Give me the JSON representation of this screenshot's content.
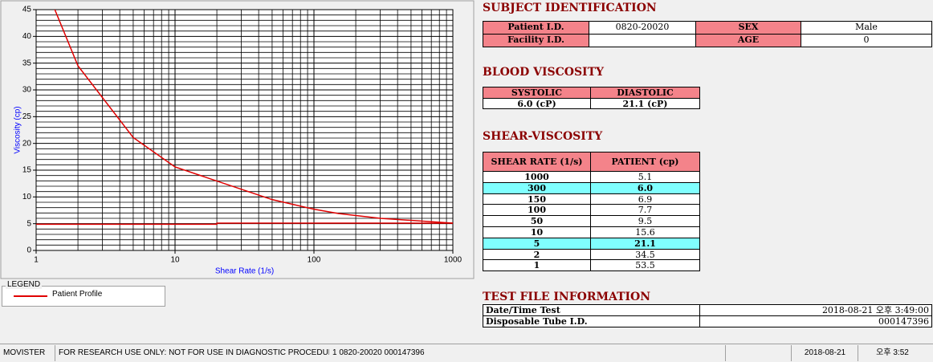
{
  "chart_data": {
    "type": "line",
    "x_label": "Shear Rate (1/s)",
    "y_label": "Viscosity (cp)",
    "log_x": true,
    "xlim": [
      1,
      1000
    ],
    "xticks": [
      1,
      10,
      100,
      1000
    ],
    "xminor": [
      2,
      3,
      4,
      5,
      6,
      7,
      8,
      9,
      20,
      30,
      40,
      50,
      60,
      70,
      80,
      90,
      200,
      300,
      400,
      500,
      600,
      700,
      800,
      900
    ],
    "ylim": [
      0,
      45
    ],
    "yticks": [
      0,
      5,
      10,
      15,
      20,
      25,
      30,
      35,
      40,
      45
    ],
    "yminor": [
      1,
      2,
      3,
      4,
      6,
      7,
      8,
      9,
      11,
      12,
      13,
      14,
      16,
      17,
      18,
      19,
      21,
      22,
      23,
      24,
      26,
      27,
      28,
      29,
      31,
      32,
      33,
      34,
      36,
      37,
      38,
      39,
      41,
      42,
      43,
      44
    ],
    "grid": true,
    "series": [
      {
        "name": "Patient Profile",
        "color": "#e00000",
        "x": [
          1,
          2,
          5,
          10,
          50,
          100,
          150,
          300,
          1000
        ],
        "values": [
          53.5,
          34.5,
          21.1,
          15.6,
          9.5,
          7.7,
          6.9,
          6.0,
          5.1
        ]
      },
      {
        "color": "#e00000",
        "x": [
          1,
          20,
          20,
          1000
        ],
        "values": [
          4.9,
          4.9,
          5.1,
          5.1
        ]
      }
    ],
    "legend_title": "LEGEND"
  },
  "subject": {
    "title": "SUBJECT IDENTIFICATION",
    "rows": [
      [
        "Patient I.D.",
        "0820-20020",
        "SEX",
        "Male"
      ],
      [
        "Facility I.D.",
        null,
        "AGE",
        "0"
      ]
    ]
  },
  "blood": {
    "title": "BLOOD VISCOSITY",
    "headers": [
      "SYSTOLIC",
      "DIASTOLIC"
    ],
    "values": [
      "6.0 (cP)",
      "21.1 (cP)"
    ]
  },
  "shear": {
    "title": "SHEAR-VISCOSITY",
    "headers": [
      "SHEAR RATE (1/s)",
      "PATIENT (cp)"
    ],
    "rows": [
      [
        "1000",
        "5.1"
      ],
      [
        "300",
        "6.0"
      ],
      [
        "150",
        "6.9"
      ],
      [
        "100",
        "7.7"
      ],
      [
        "50",
        "9.5"
      ],
      [
        "10",
        "15.6"
      ],
      [
        "5",
        "21.1"
      ],
      [
        "2",
        "34.5"
      ],
      [
        "1",
        "53.5"
      ]
    ],
    "highlighted_rows": [
      1,
      6
    ]
  },
  "test_file": {
    "title": "TEST FILE INFORMATION",
    "rows": [
      [
        "Date/Time Test",
        "2018-08-21  오후 3:49:00"
      ],
      [
        "Disposable Tube I.D.",
        "000147396"
      ]
    ]
  },
  "status_bar": [
    "MOVISTER",
    "FOR RESEARCH USE ONLY: NOT FOR USE IN DIAGNOSTIC PROCEDURES",
    "1  0820-20020  000147396",
    "2018-08-21",
    "오후 3:52"
  ]
}
